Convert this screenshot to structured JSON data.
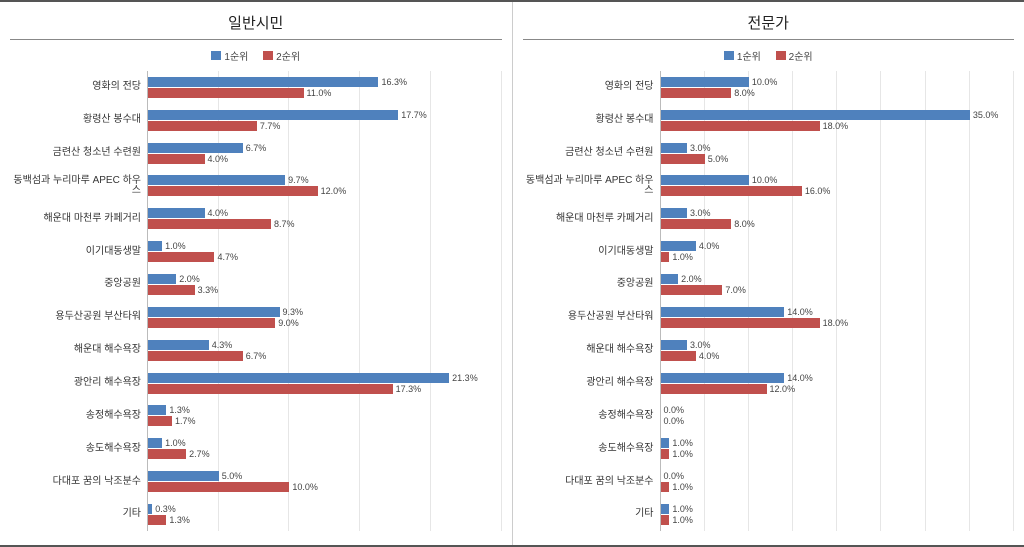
{
  "colors": {
    "series1": "#4f81bd",
    "series2": "#c0504d",
    "grid": "#e6e6e6",
    "axis": "#bbbbbb",
    "text": "#333333",
    "background": "#ffffff"
  },
  "legend": {
    "s1": "1순위",
    "s2": "2순위"
  },
  "panels": [
    {
      "title": "일반시민",
      "xmax": 25,
      "gridStep": 5,
      "categories": [
        {
          "label": "영화의 전당",
          "v1": 16.3,
          "v2": 11.0
        },
        {
          "label": "황령산 봉수대",
          "v1": 17.7,
          "v2": 7.7
        },
        {
          "label": "금련산 청소년 수련원",
          "v1": 6.7,
          "v2": 4.0
        },
        {
          "label": "동백섬과 누리마루 APEC 하우스",
          "v1": 9.7,
          "v2": 12.0
        },
        {
          "label": "해운대 마천루 카페거리",
          "v1": 4.0,
          "v2": 8.7
        },
        {
          "label": "이기대동생말",
          "v1": 1.0,
          "v2": 4.7
        },
        {
          "label": "중앙공원",
          "v1": 2.0,
          "v2": 3.3
        },
        {
          "label": "용두산공원 부산타워",
          "v1": 9.3,
          "v2": 9.0
        },
        {
          "label": "해운대 해수욕장",
          "v1": 4.3,
          "v2": 6.7
        },
        {
          "label": "광안리 해수욕장",
          "v1": 21.3,
          "v2": 17.3
        },
        {
          "label": "송정해수욕장",
          "v1": 1.3,
          "v2": 1.7
        },
        {
          "label": "송도해수욕장",
          "v1": 1.0,
          "v2": 2.7
        },
        {
          "label": "다대포 꿈의 낙조분수",
          "v1": 5.0,
          "v2": 10.0
        },
        {
          "label": "기타",
          "v1": 0.3,
          "v2": 1.3
        }
      ]
    },
    {
      "title": "전문가",
      "xmax": 40,
      "gridStep": 5,
      "categories": [
        {
          "label": "영화의 전당",
          "v1": 10.0,
          "v2": 8.0
        },
        {
          "label": "황령산 봉수대",
          "v1": 35.0,
          "v2": 18.0
        },
        {
          "label": "금련산 청소년 수련원",
          "v1": 3.0,
          "v2": 5.0
        },
        {
          "label": "동백섬과 누리마루 APEC 하우스",
          "v1": 10.0,
          "v2": 16.0
        },
        {
          "label": "해운대 마천루 카페거리",
          "v1": 3.0,
          "v2": 8.0
        },
        {
          "label": "이기대동생말",
          "v1": 4.0,
          "v2": 1.0
        },
        {
          "label": "중앙공원",
          "v1": 2.0,
          "v2": 7.0
        },
        {
          "label": "용두산공원 부산타워",
          "v1": 14.0,
          "v2": 18.0
        },
        {
          "label": "해운대 해수욕장",
          "v1": 3.0,
          "v2": 4.0
        },
        {
          "label": "광안리 해수욕장",
          "v1": 14.0,
          "v2": 12.0
        },
        {
          "label": "송정해수욕장",
          "v1": 0.0,
          "v2": 0.0
        },
        {
          "label": "송도해수욕장",
          "v1": 1.0,
          "v2": 1.0
        },
        {
          "label": "다대포 꿈의 낙조분수",
          "v1": 0.0,
          "v2": 1.0
        },
        {
          "label": "기타",
          "v1": 1.0,
          "v2": 1.0
        }
      ]
    }
  ]
}
